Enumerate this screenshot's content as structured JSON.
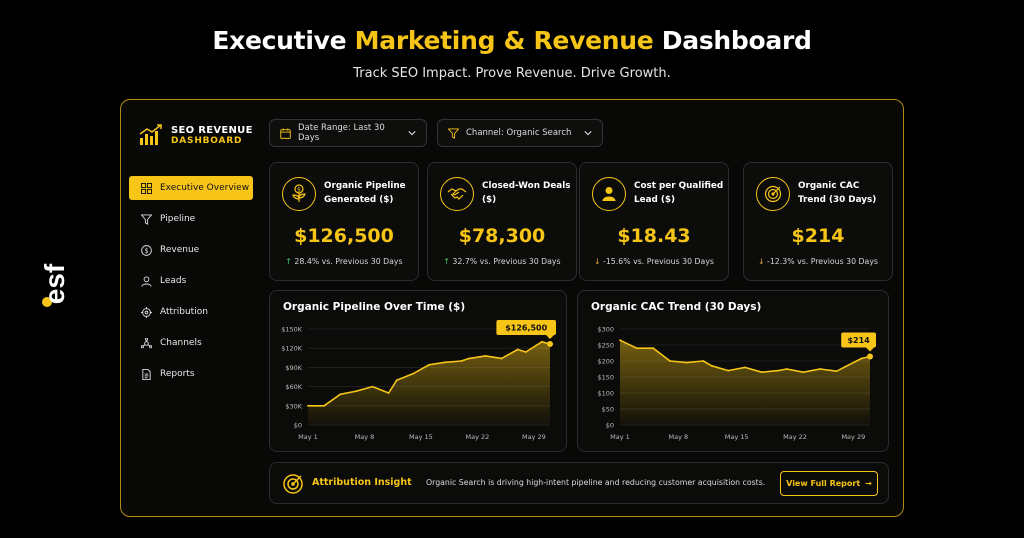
{
  "hero": {
    "title_a": "Executive ",
    "title_accent": "Marketing & Revenue",
    "title_b": " Dashboard",
    "subtitle": "Track SEO Impact. Prove Revenue. Drive Growth."
  },
  "brand": {
    "logo_text": "esf"
  },
  "sidebar": {
    "logo_line1": "SEO REVENUE",
    "logo_line2": "DASHBOARD",
    "items": [
      {
        "label": "Executive Overview",
        "icon": "grid-icon",
        "active": true
      },
      {
        "label": "Pipeline",
        "icon": "funnel-icon"
      },
      {
        "label": "Revenue",
        "icon": "dollar-circle-icon"
      },
      {
        "label": "Leads",
        "icon": "user-icon"
      },
      {
        "label": "Attribution",
        "icon": "crosshair-icon"
      },
      {
        "label": "Channels",
        "icon": "network-icon"
      },
      {
        "label": "Reports",
        "icon": "document-icon"
      }
    ]
  },
  "filters": {
    "date_range": "Date Range: Last 30 Days",
    "channel": "Channel: Organic Search"
  },
  "kpis": [
    {
      "label": "Organic Pipeline Generated ($)",
      "value": "$126,500",
      "delta": "28.4% vs. Previous 30 Days",
      "direction": "up",
      "icon": "money-plant-icon"
    },
    {
      "label": "Closed-Won Deals ($)",
      "value": "$78,300",
      "delta": "32.7% vs. Previous 30 Days",
      "direction": "up",
      "icon": "handshake-icon"
    },
    {
      "label": "Cost per Qualified Lead ($)",
      "value": "$18.43",
      "delta": "-15.6% vs. Previous 30 Days",
      "direction": "down",
      "icon": "user-icon"
    },
    {
      "label": "Organic CAC Trend (30 Days)",
      "value": "$214",
      "delta": "-12.3% vs. Previous 30 Days",
      "direction": "down",
      "icon": "target-icon"
    }
  ],
  "colors": {
    "accent": "#f6c518",
    "up": "#3ecf6b",
    "down": "#f2b33d",
    "background": "#000000"
  },
  "chart_data": [
    {
      "type": "area",
      "title": "Organic Pipeline Over Time ($)",
      "x_ticks": [
        "May 1",
        "May 8",
        "May 15",
        "May 22",
        "May 29"
      ],
      "y_ticks": [
        "$0",
        "$30K",
        "$60K",
        "$90K",
        "$120K",
        "$150K"
      ],
      "ylim": [
        0,
        150000
      ],
      "x_days": [
        1,
        3,
        5,
        7,
        9,
        11,
        12,
        14,
        16,
        18,
        20,
        21,
        23,
        25,
        27,
        28,
        30,
        31
      ],
      "values": [
        30000,
        30000,
        48000,
        53000,
        60000,
        50000,
        70000,
        80000,
        94000,
        98000,
        100000,
        104000,
        108000,
        104000,
        118000,
        114000,
        130000,
        126500
      ],
      "callout": "$126,500",
      "grid": true
    },
    {
      "type": "area",
      "title": "Organic CAC Trend (30 Days)",
      "x_ticks": [
        "May 1",
        "May 8",
        "May 15",
        "May 22",
        "May 29"
      ],
      "y_ticks": [
        "$0",
        "$50",
        "$100",
        "$150",
        "$200",
        "$250",
        "$300"
      ],
      "ylim": [
        0,
        300
      ],
      "x_days": [
        1,
        3,
        5,
        7,
        9,
        11,
        12,
        14,
        16,
        18,
        20,
        21,
        23,
        25,
        27,
        28,
        30,
        31
      ],
      "values": [
        265,
        240,
        240,
        200,
        195,
        200,
        185,
        170,
        180,
        165,
        170,
        175,
        165,
        175,
        168,
        182,
        208,
        214
      ],
      "callout": "$214",
      "grid": true
    }
  ],
  "insight": {
    "label": "Attribution Insight",
    "text": "Organic Search is driving high-intent pipeline and reducing customer acquisition costs.",
    "button": "View Full Report"
  }
}
